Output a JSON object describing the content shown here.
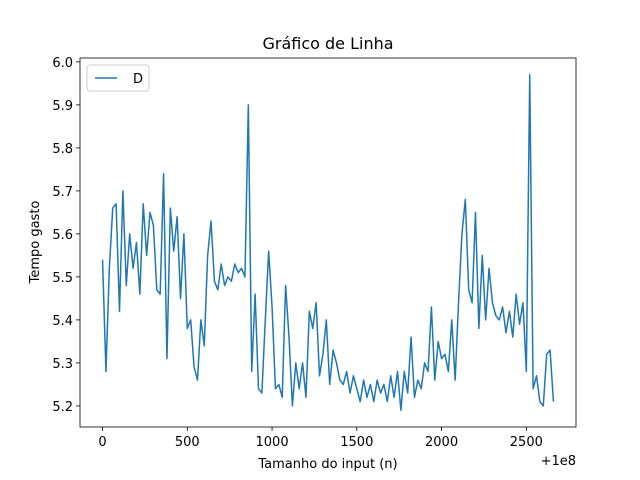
{
  "chart_data": {
    "type": "line",
    "title": "Gráfico de Linha",
    "x_label": "Tamanho do input (n)",
    "y_label": "Tempo gasto",
    "x_offset_text": "+1e8",
    "legend": "upper left",
    "xlim": [
      99999867,
      100002793
    ],
    "ylim": [
      5.151,
      6.009
    ],
    "xticks": [
      {
        "value": 100000000,
        "label": "0"
      },
      {
        "value": 100000500,
        "label": "500"
      },
      {
        "value": 100001000,
        "label": "1000"
      },
      {
        "value": 100001500,
        "label": "1500"
      },
      {
        "value": 100002000,
        "label": "2000"
      },
      {
        "value": 100002500,
        "label": "2500"
      }
    ],
    "yticks": [
      5.2,
      5.3,
      5.4,
      5.5,
      5.6,
      5.7,
      5.8,
      5.9,
      {
        "value": 6,
        "label": "6.0"
      }
    ],
    "x": [
      100000000,
      100000020,
      100000040,
      100000060,
      100000080,
      100000100,
      100000120,
      100000140,
      100000160,
      100000180,
      100000200,
      100000220,
      100000240,
      100000260,
      100000280,
      100000300,
      100000320,
      100000340,
      100000360,
      100000380,
      100000400,
      100000420,
      100000440,
      100000460,
      100000480,
      100000500,
      100000520,
      100000540,
      100000560,
      100000580,
      100000600,
      100000620,
      100000640,
      100000660,
      100000680,
      100000700,
      100000720,
      100000740,
      100000760,
      100000780,
      100000800,
      100000820,
      100000840,
      100000860,
      100000880,
      100000900,
      100000920,
      100000940,
      100000960,
      100000980,
      100001000,
      100001020,
      100001040,
      100001060,
      100001080,
      100001100,
      100001120,
      100001140,
      100001160,
      100001180,
      100001200,
      100001220,
      100001240,
      100001260,
      100001280,
      100001300,
      100001320,
      100001340,
      100001360,
      100001380,
      100001400,
      100001420,
      100001440,
      100001460,
      100001480,
      100001500,
      100001520,
      100001540,
      100001560,
      100001580,
      100001600,
      100001620,
      100001640,
      100001660,
      100001680,
      100001700,
      100001720,
      100001740,
      100001760,
      100001780,
      100001800,
      100001820,
      100001840,
      100001860,
      100001880,
      100001900,
      100001920,
      100001940,
      100001960,
      100001980,
      100002000,
      100002020,
      100002040,
      100002060,
      100002080,
      100002100,
      100002120,
      100002140,
      100002160,
      100002180,
      100002200,
      100002220,
      100002240,
      100002260,
      100002280,
      100002300,
      100002320,
      100002340,
      100002360,
      100002380,
      100002400,
      100002420,
      100002440,
      100002460,
      100002480,
      100002500,
      100002520,
      100002540,
      100002560,
      100002580,
      100002600,
      100002620,
      100002640,
      100002660
    ],
    "series": [
      {
        "name": "D",
        "color": "#1f77b4",
        "values": [
          5.54,
          5.28,
          5.52,
          5.66,
          5.67,
          5.42,
          5.7,
          5.48,
          5.6,
          5.52,
          5.58,
          5.46,
          5.67,
          5.55,
          5.65,
          5.62,
          5.47,
          5.46,
          5.74,
          5.31,
          5.66,
          5.56,
          5.64,
          5.45,
          5.6,
          5.38,
          5.4,
          5.29,
          5.26,
          5.4,
          5.34,
          5.55,
          5.63,
          5.49,
          5.47,
          5.53,
          5.48,
          5.5,
          5.49,
          5.53,
          5.51,
          5.52,
          5.5,
          5.9,
          5.28,
          5.46,
          5.24,
          5.23,
          5.4,
          5.56,
          5.43,
          5.24,
          5.25,
          5.22,
          5.48,
          5.36,
          5.2,
          5.3,
          5.24,
          5.3,
          5.22,
          5.42,
          5.38,
          5.44,
          5.27,
          5.32,
          5.4,
          5.25,
          5.33,
          5.3,
          5.26,
          5.25,
          5.28,
          5.23,
          5.27,
          5.24,
          5.21,
          5.26,
          5.22,
          5.25,
          5.21,
          5.26,
          5.23,
          5.25,
          5.21,
          5.27,
          5.22,
          5.28,
          5.19,
          5.28,
          5.23,
          5.36,
          5.22,
          5.26,
          5.24,
          5.3,
          5.28,
          5.43,
          5.26,
          5.35,
          5.31,
          5.32,
          5.28,
          5.4,
          5.26,
          5.44,
          5.6,
          5.68,
          5.47,
          5.44,
          5.65,
          5.38,
          5.55,
          5.4,
          5.52,
          5.44,
          5.41,
          5.4,
          5.43,
          5.37,
          5.42,
          5.36,
          5.46,
          5.39,
          5.44,
          5.28,
          5.97,
          5.24,
          5.27,
          5.21,
          5.2,
          5.32,
          5.33,
          5.21
        ]
      }
    ]
  }
}
